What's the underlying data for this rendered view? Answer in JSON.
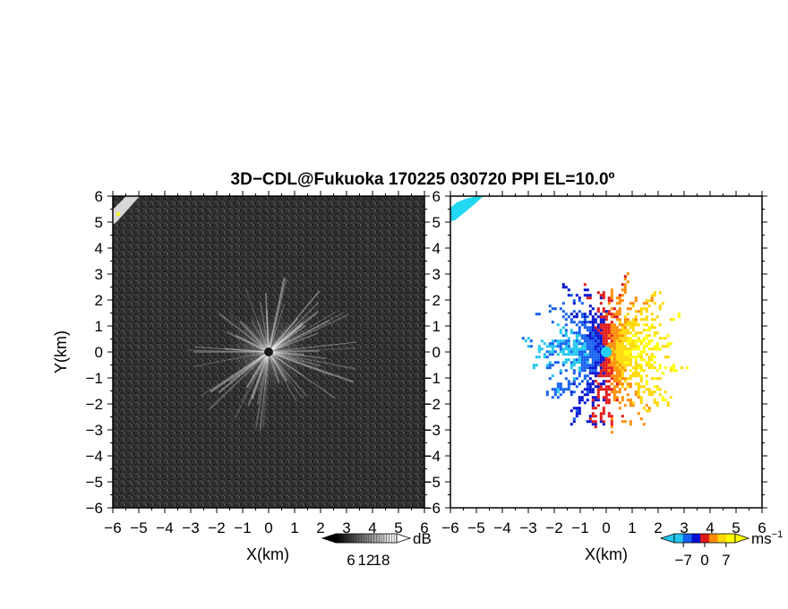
{
  "title": "3D−CDL@Fukuoka 170225 030720 PPI EL=10.0º",
  "colors": {
    "background": "#ffffff",
    "frame": "#000000",
    "text": "#000000"
  },
  "chart_data": [
    {
      "type": "heatmap",
      "panel": "left",
      "quantity": "backscatter intensity (grayscale)",
      "xlabel": "X(km)",
      "ylabel": "Y(km)",
      "xlim": [
        -6,
        6
      ],
      "ylim": [
        -6,
        6
      ],
      "xticks": [
        "−6",
        "−5",
        "−4",
        "−3",
        "−2",
        "−1",
        "0",
        "1",
        "2",
        "3",
        "4",
        "5",
        "6"
      ],
      "yticks": [
        "−6",
        "−5",
        "−4",
        "−3",
        "−2",
        "−1",
        "0",
        "1",
        "2",
        "3",
        "4",
        "5",
        "6"
      ],
      "colorbar": {
        "unit": "dB",
        "ticks": [
          "6",
          "12",
          "18"
        ],
        "tick_values": [
          6,
          12,
          18
        ],
        "range": [
          0,
          24
        ],
        "palette": [
          "#000000",
          "#ffffff"
        ]
      },
      "features": {
        "center": [
          0,
          0
        ],
        "radial_streaks_extent_km": 3.5,
        "bright_patch_corner": "top-left"
      }
    },
    {
      "type": "heatmap",
      "panel": "right",
      "quantity": "radial velocity",
      "xlabel": "X(km)",
      "xlim": [
        -6,
        6
      ],
      "ylim": [
        -6,
        6
      ],
      "xticks": [
        "−6",
        "−5",
        "−4",
        "−3",
        "−2",
        "−1",
        "0",
        "1",
        "2",
        "3",
        "4",
        "5",
        "6"
      ],
      "yticks": [
        "−6",
        "−5",
        "−4",
        "−3",
        "−2",
        "−1",
        "0",
        "1",
        "2",
        "3",
        "4",
        "5",
        "6"
      ],
      "colorbar": {
        "unit": "ms",
        "unit_sup": "−1",
        "ticks": [
          "−7",
          "0",
          "7"
        ],
        "tick_values": [
          -7,
          0,
          7
        ],
        "range": [
          -10,
          10
        ],
        "palette": [
          "#22c8f0",
          "#1560f0",
          "#0010d0",
          "#e01818",
          "#ff8c00",
          "#ffd700",
          "#ffff00"
        ]
      },
      "features": {
        "center": [
          0,
          0
        ],
        "negative_side": "west",
        "positive_side": "east",
        "echo_extent_km": 3.3,
        "corner_echo": "top-left"
      }
    }
  ]
}
